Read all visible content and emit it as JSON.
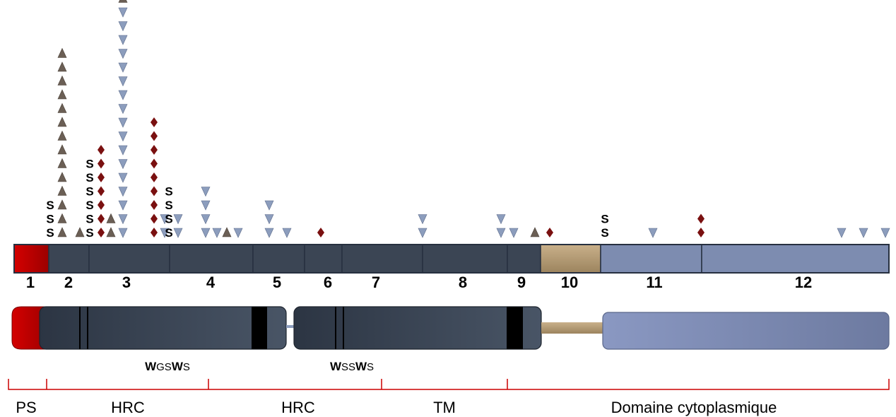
{
  "exons": [
    {
      "label": "1",
      "color": "#c00000",
      "variants": [
        {
          "type": "up",
          "count": 0
        }
      ]
    },
    {
      "label": "2",
      "color": "#3b4554",
      "variants": []
    },
    {
      "label": "3",
      "color": "#3b4554",
      "variants": []
    },
    {
      "label": "4",
      "color": "#3b4554",
      "variants": []
    },
    {
      "label": "5",
      "color": "#3b4554",
      "variants": []
    },
    {
      "label": "6",
      "color": "#3b4554",
      "variants": []
    },
    {
      "label": "7",
      "color": "#3b4554",
      "variants": []
    },
    {
      "label": "8",
      "color": "#3b4554",
      "variants": []
    },
    {
      "label": "9",
      "color": "#3b4554",
      "variants": []
    },
    {
      "label": "10",
      "color": "#b39a74",
      "variants": []
    },
    {
      "label": "11",
      "color": "#7d8cb0",
      "variants": []
    },
    {
      "label": "12",
      "color": "#7d8cb0",
      "variants": []
    }
  ],
  "variant_columns": [
    {
      "exon": "2",
      "type": "splice",
      "count": 3
    },
    {
      "exon": "2",
      "type": "up",
      "count": 1
    },
    {
      "exon": "2",
      "type": "up",
      "count": 13
    },
    {
      "exon": "2",
      "type": "up",
      "count": 1
    },
    {
      "exon": "2",
      "type": "splice",
      "count": 6
    },
    {
      "exon": "2",
      "type": "diamond",
      "count": 7
    },
    {
      "exon": "3",
      "type": "up",
      "count": 2
    },
    {
      "exon": "3",
      "type": "down",
      "count": 17
    },
    {
      "exon": "3",
      "type": "up",
      "count": 1
    },
    {
      "exon": "3",
      "type": "diamond",
      "count": 9
    },
    {
      "exon": "3",
      "type": "down",
      "count": 2
    },
    {
      "exon": "3",
      "type": "splice",
      "count": 4
    },
    {
      "exon": "3",
      "type": "down",
      "count": 2
    },
    {
      "exon": "4",
      "type": "down",
      "count": 4
    },
    {
      "exon": "4",
      "type": "down",
      "count": 1
    },
    {
      "exon": "4",
      "type": "up",
      "count": 1
    },
    {
      "exon": "4",
      "type": "down",
      "count": 1
    },
    {
      "exon": "5",
      "type": "down",
      "count": 3
    },
    {
      "exon": "5",
      "type": "down",
      "count": 1
    },
    {
      "exon": "6",
      "type": "diamond",
      "count": 1
    },
    {
      "exon": "7",
      "type": "down",
      "count": 2
    },
    {
      "exon": "8",
      "type": "down",
      "count": 2
    },
    {
      "exon": "9",
      "type": "down",
      "count": 1
    },
    {
      "exon": "9",
      "type": "up",
      "count": 1
    },
    {
      "exon": "10",
      "type": "diamond",
      "count": 1
    },
    {
      "exon": "11",
      "type": "splice",
      "count": 2
    },
    {
      "exon": "11",
      "type": "down",
      "count": 1
    },
    {
      "exon": "11",
      "type": "diamond",
      "count": 2
    },
    {
      "exon": "12",
      "type": "down",
      "count": 1
    },
    {
      "exon": "12",
      "type": "down",
      "count": 1
    },
    {
      "exon": "12",
      "type": "down",
      "count": 1
    }
  ],
  "symbols": {
    "splice": "S"
  },
  "colors": {
    "triangle_up": "#6b5f55",
    "triangle_down": "#8c9dbd",
    "diamond": "#7a1010",
    "signal_peptide": "#c00000",
    "hrc_domain": "#333e4d",
    "tm_linker": "#b39a74",
    "cytoplasmic": "#7d8cb0",
    "bracket": "#cc0000",
    "motif_bar": "#000000"
  },
  "motifs": [
    {
      "bold1": "W",
      "mid": "GS",
      "bold2": "W",
      "end": "S"
    },
    {
      "bold1": "W",
      "mid": "SS",
      "bold2": "W",
      "end": "S"
    }
  ],
  "domains": [
    "PS",
    "HRC",
    "HRC",
    "TM",
    "Domaine cytoplasmique"
  ]
}
